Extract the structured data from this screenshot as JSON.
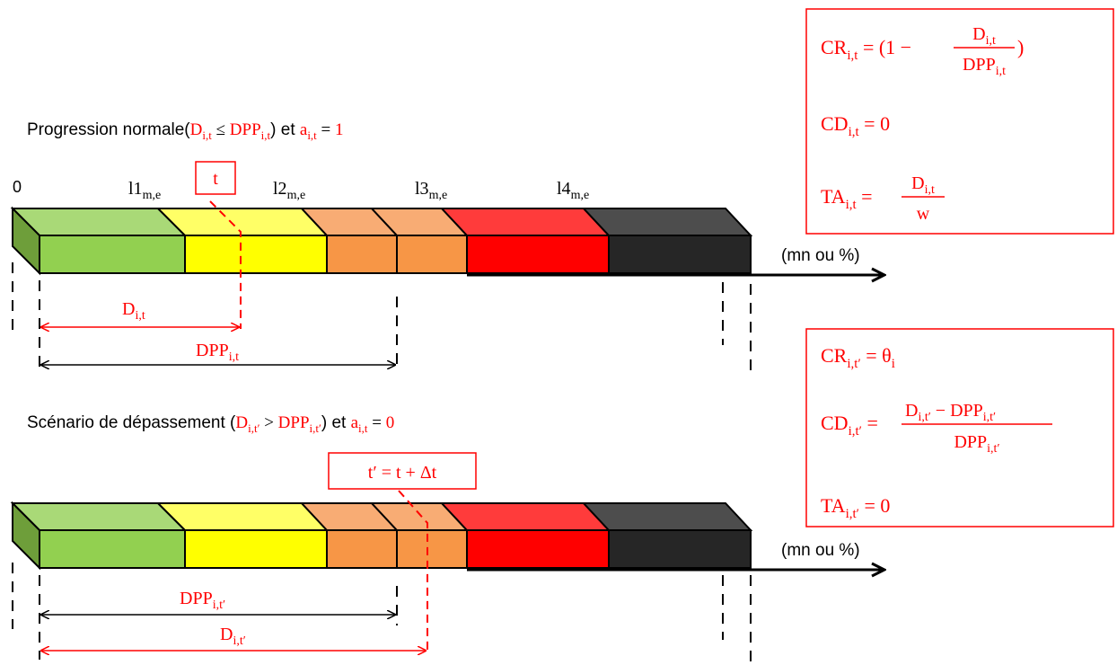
{
  "colors": {
    "red": "#ff0000",
    "black": "#000000",
    "segments": {
      "green": [
        "#a9d977",
        "#92d050",
        "#6e9e3a"
      ],
      "yellow": [
        "#ffff66",
        "#ffff00",
        "#c8c800"
      ],
      "orange": [
        "#f8ac74",
        "#f79646",
        "#c8742e"
      ],
      "red": [
        "#ff3b3b",
        "#ff0000",
        "#c00000"
      ],
      "dark": [
        "#4d4d4d",
        "#262626",
        "#111111"
      ]
    }
  },
  "scenario1": {
    "title": {
      "prefix": "Progression normale(",
      "d": "D",
      "d_sub": "i,t",
      "op": " ≤ ",
      "dpp": "DPP",
      "dpp_sub": "i,t",
      "close": ") et ",
      "a": "a",
      "a_sub": "i,t",
      "eq": " = ",
      "val": "1"
    },
    "marker_t": "t",
    "thresholds": {
      "zero": "0",
      "l1": "l1",
      "l1_sub": "m,e",
      "l2": "l2",
      "l2_sub": "m,e",
      "l3": "l3",
      "l3_sub": "m,e",
      "l4": "l4",
      "l4_sub": "m,e"
    },
    "axis_unit": "(mn ou %)",
    "d_label": "D",
    "d_sub": "i,t",
    "dpp_label": "DPP",
    "dpp_sub": "i,t"
  },
  "scenario2": {
    "title": {
      "prefix": "Scénario de dépassement (",
      "d": "D",
      "d_sub": "i,t′",
      "op": " > ",
      "dpp": "DPP",
      "dpp_sub": "i,t′",
      "close": ") et ",
      "a": "a",
      "a_sub": "i,t",
      "eq": " = ",
      "val": "0"
    },
    "marker_t": "t′ = t + Δt",
    "axis_unit": "(mn ou %)",
    "dpp_label": "DPP",
    "dpp_sub": "i,t′",
    "d_label": "D",
    "d_sub": "i,t′"
  },
  "formulas1": {
    "cr": {
      "lhs": "CR",
      "lhs_sub": "i,t",
      "eq": " = (1 − ",
      "num": "D",
      "num_sub": "i,t",
      "den": "DPP",
      "den_sub": "i,t",
      "tail": ")"
    },
    "cd": {
      "lhs": "CD",
      "lhs_sub": "i,t",
      "rhs": " = 0"
    },
    "ta": {
      "lhs": "TA",
      "lhs_sub": "i,t",
      "eq": " = ",
      "num": "D",
      "num_sub": "i,t",
      "den": "w"
    }
  },
  "formulas2": {
    "cr": {
      "lhs": "CR",
      "lhs_sub": "i,t′",
      "eq": " = θ",
      "theta_sub": "i"
    },
    "cd": {
      "lhs": "CD",
      "lhs_sub": "i,t′",
      "eq": " = ",
      "num1": "D",
      "num1_sub": "i,t′",
      "minus": " − DPP",
      "num2_sub": "i,t′",
      "den": "DPP",
      "den_sub": "i,t′"
    },
    "ta": {
      "lhs": "TA",
      "lhs_sub": "i,t′",
      "rhs": " = 0"
    }
  }
}
